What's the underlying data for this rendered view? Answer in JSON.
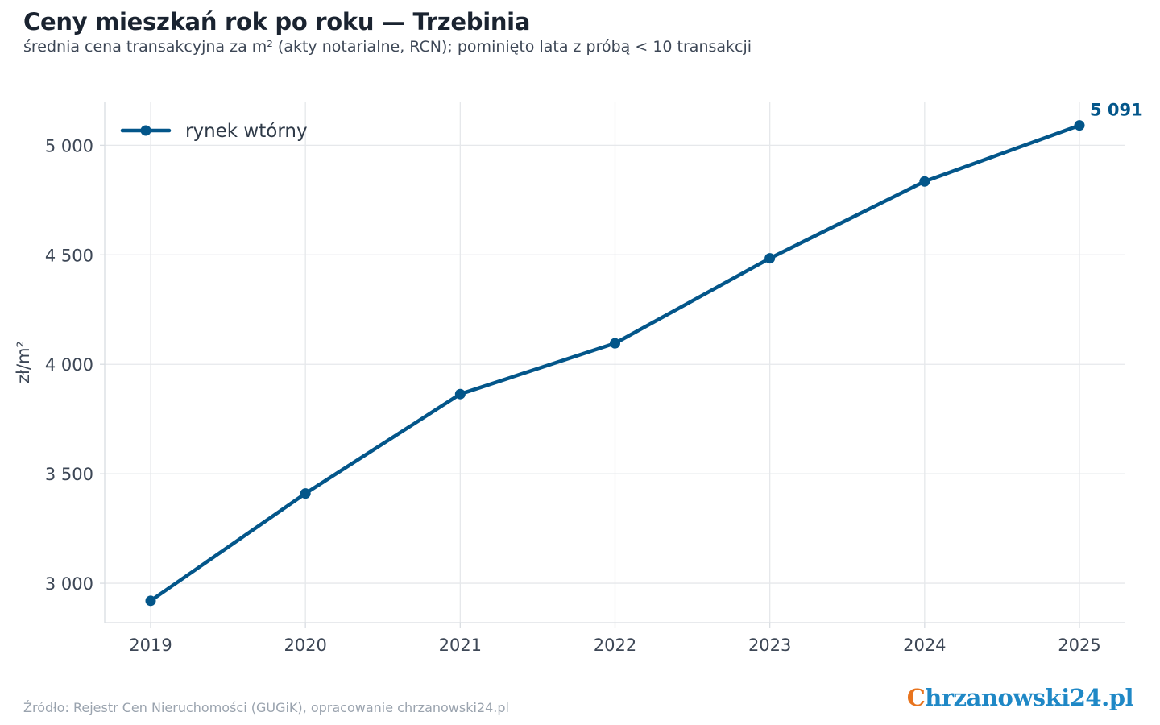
{
  "title": "Ceny mieszkań rok po roku — Trzebinia",
  "subtitle": "średnia cena transakcyjna za m² (akty notarialne, RCN); pominięto lata z próbą < 10 transakcji",
  "source": "Źródło: Rejestr Cen Nieruchomości (GUGiK), opracowanie chrzanowski24.pl",
  "logo": {
    "first_letter": "C",
    "rest": "hrzanowski24.pl"
  },
  "colors": {
    "series": "#03568a",
    "grid": "#e6e8eb",
    "axis": "#d9dde2",
    "logo_orange": "#e8741e",
    "logo_blue": "#1f88c6"
  },
  "chart_data": {
    "type": "line",
    "x": [
      2019,
      2020,
      2021,
      2022,
      2023,
      2024,
      2025
    ],
    "x_tick_labels": [
      "2019",
      "2020",
      "2021",
      "2022",
      "2023",
      "2024",
      "2025"
    ],
    "series": [
      {
        "name": "rynek wtórny",
        "values": [
          2920,
          3410,
          3864,
          4096,
          4484,
          4835,
          5091
        ]
      }
    ],
    "end_label": "5 091",
    "ylabel": "zł/m²",
    "ylim": [
      2820,
      5200
    ],
    "y_ticks": [
      3000,
      3500,
      4000,
      4500,
      5000
    ],
    "y_tick_labels": [
      "3 000",
      "3 500",
      "4 000",
      "4 500",
      "5 000"
    ],
    "grid": true,
    "legend_position": "top-left"
  }
}
